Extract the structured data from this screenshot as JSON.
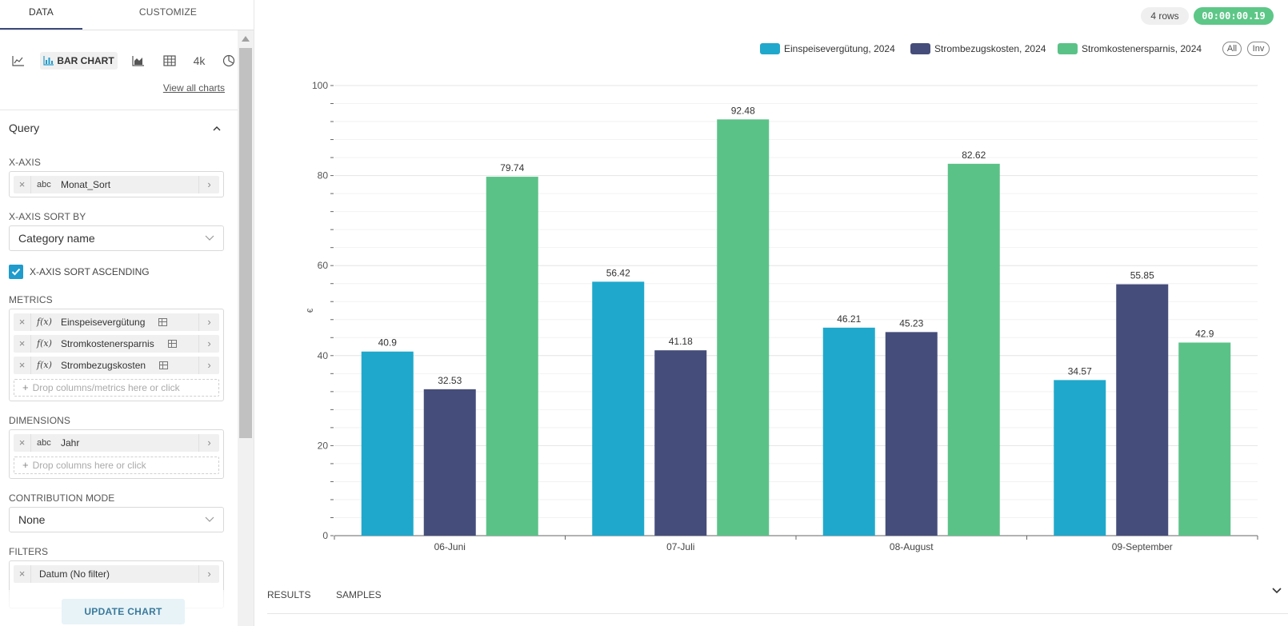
{
  "left_panel": {
    "tabs": {
      "data": "DATA",
      "customize": "CUSTOMIZE"
    },
    "viz": {
      "bar_label": "BAR CHART",
      "bignum_label": "4k",
      "view_all": "View all charts"
    },
    "query": {
      "title": "Query",
      "xaxis": {
        "label": "X-AXIS",
        "type": "abc",
        "column": "Monat_Sort"
      },
      "sort_by": {
        "label": "X-AXIS SORT BY",
        "value": "Category name"
      },
      "sort_ascending": {
        "label": "X-AXIS SORT ASCENDING",
        "checked": true
      },
      "metrics": {
        "label": "METRICS",
        "items": [
          {
            "fx": "f(x)",
            "name": "Einspeisevergütung"
          },
          {
            "fx": "f(x)",
            "name": "Stromkostenersparnis"
          },
          {
            "fx": "f(x)",
            "name": "Strombezugskosten"
          }
        ],
        "drop_placeholder": "Drop columns/metrics here or click"
      },
      "dimensions": {
        "label": "DIMENSIONS",
        "items": [
          {
            "type": "abc",
            "name": "Jahr"
          }
        ],
        "drop_placeholder": "Drop columns here or click"
      },
      "contribution": {
        "label": "CONTRIBUTION MODE",
        "value": "None"
      },
      "filters": {
        "label": "FILTERS",
        "items": [
          {
            "name": "Datum (No filter)"
          }
        ]
      }
    },
    "update_button": "UPDATE CHART"
  },
  "header": {
    "rows": "4 rows",
    "timer": "00:00:00.19"
  },
  "legend": {
    "all": "All",
    "inv": "Inv"
  },
  "results": {
    "tab_results": "RESULTS",
    "tab_samples": "SAMPLES"
  },
  "colors": {
    "series1": "#1fa8cc",
    "series2": "#454d7a",
    "series3": "#5bc287",
    "accent": "#1f9bcc",
    "timer": "#5dc787"
  },
  "chart_data": {
    "type": "bar",
    "categories": [
      "06-Juni",
      "07-Juli",
      "08-August",
      "09-September"
    ],
    "series": [
      {
        "name": "Einspeisevergütung, 2024",
        "values": [
          40.9,
          56.42,
          46.21,
          34.57
        ]
      },
      {
        "name": "Strombezugskosten, 2024",
        "values": [
          32.53,
          41.18,
          45.23,
          55.85
        ]
      },
      {
        "name": "Stromkostenersparnis, 2024",
        "values": [
          79.74,
          92.48,
          82.62,
          42.9
        ]
      }
    ],
    "ylabel": "€",
    "ylim": [
      0,
      100
    ],
    "yticks": [
      0,
      20,
      40,
      60,
      80,
      100
    ],
    "grid": true,
    "legend_position": "top-right"
  }
}
